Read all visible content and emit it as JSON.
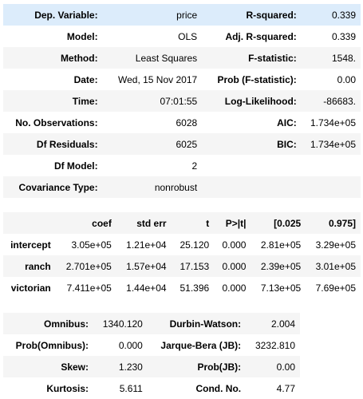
{
  "summary": {
    "rows": [
      {
        "l1": "Dep. Variable:",
        "v1": "price",
        "l2": "R-squared:",
        "v2": "0.339"
      },
      {
        "l1": "Model:",
        "v1": "OLS",
        "l2": "Adj. R-squared:",
        "v2": "0.339"
      },
      {
        "l1": "Method:",
        "v1": "Least Squares",
        "l2": "F-statistic:",
        "v2": "1548."
      },
      {
        "l1": "Date:",
        "v1": "Wed, 15 Nov 2017",
        "l2": "Prob (F-statistic):",
        "v2": "0.00"
      },
      {
        "l1": "Time:",
        "v1": "07:01:55",
        "l2": "Log-Likelihood:",
        "v2": "-86683."
      },
      {
        "l1": "No. Observations:",
        "v1": "6028",
        "l2": "AIC:",
        "v2": "1.734e+05"
      },
      {
        "l1": "Df Residuals:",
        "v1": "6025",
        "l2": "BIC:",
        "v2": "1.734e+05"
      },
      {
        "l1": "Df Model:",
        "v1": "2",
        "l2": "",
        "v2": ""
      },
      {
        "l1": "Covariance Type:",
        "v1": "nonrobust",
        "l2": "",
        "v2": ""
      }
    ]
  },
  "coefficients": {
    "headers": [
      "",
      "coef",
      "std err",
      "t",
      "P>|t|",
      "[0.025",
      "0.975]"
    ],
    "rows": [
      {
        "name": "intercept",
        "coef": "3.05e+05",
        "stderr": "1.21e+04",
        "t": "25.120",
        "p": "0.000",
        "lo": "2.81e+05",
        "hi": "3.29e+05"
      },
      {
        "name": "ranch",
        "coef": "2.701e+05",
        "stderr": "1.57e+04",
        "t": "17.153",
        "p": "0.000",
        "lo": "2.39e+05",
        "hi": "3.01e+05"
      },
      {
        "name": "victorian",
        "coef": "7.411e+05",
        "stderr": "1.44e+04",
        "t": "51.396",
        "p": "0.000",
        "lo": "7.13e+05",
        "hi": "7.69e+05"
      }
    ]
  },
  "diagnostics": {
    "rows": [
      {
        "l1": "Omnibus:",
        "v1": "1340.120",
        "l2": "Durbin-Watson:",
        "v2": "2.004"
      },
      {
        "l1": "Prob(Omnibus):",
        "v1": "0.000",
        "l2": "Jarque-Bera (JB):",
        "v2": "3232.810"
      },
      {
        "l1": "Skew:",
        "v1": "1.230",
        "l2": "Prob(JB):",
        "v2": "0.00"
      },
      {
        "l1": "Kurtosis:",
        "v1": "5.611",
        "l2": "Cond. No.",
        "v2": "4.77"
      }
    ]
  }
}
